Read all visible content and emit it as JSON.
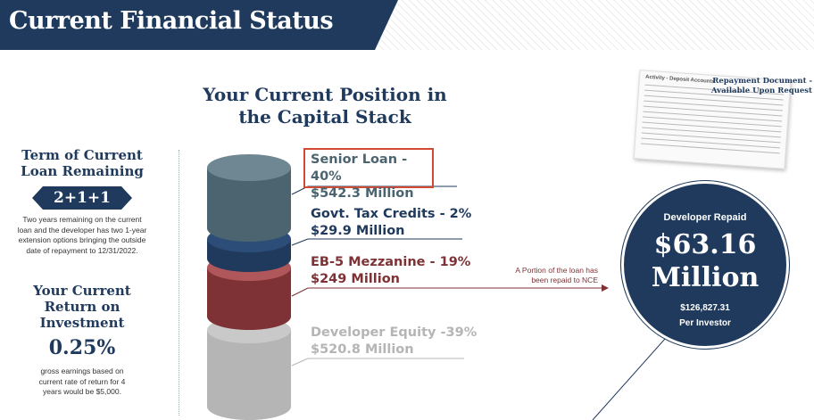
{
  "header": {
    "title": "Current Financial Status"
  },
  "colors": {
    "navy": "#1f3a5c",
    "senior": "#4b6470",
    "govt": "#1f3a5c",
    "mezzanine": "#7e3235",
    "equity": "#b5b5b5",
    "highlight": "#d24a32"
  },
  "left": {
    "term_heading_1": "Term of Current",
    "term_heading_2": "Loan Remaining",
    "term_formula": "2+1+1",
    "term_note_1": "Two years remaining on the current",
    "term_note_2": "loan and the developer has two 1-year",
    "term_note_3": "extension options bringing the outside",
    "term_note_4": "date of repayment to 12/31/2022.",
    "roi_heading_1": "Your Current",
    "roi_heading_2": "Return on",
    "roi_heading_3": "Investment",
    "roi_value": "0.25%",
    "roi_note_1": "gross earnings based on",
    "roi_note_2": "current rate of return for 4",
    "roi_note_3": "years would be $5,000."
  },
  "stack": {
    "title_1": "Your Current Position in",
    "title_2": "the Capital Stack",
    "tiers": [
      {
        "name": "Senior Loan - 40%",
        "amount": "$542.3 Million"
      },
      {
        "name": "Govt. Tax Credits - 2%",
        "amount": "$29.9 Million"
      },
      {
        "name": "EB-5 Mezzanine - 19%",
        "amount": "$249 Million"
      },
      {
        "name": "Developer Equity -39%",
        "amount": "$520.8 Million"
      }
    ],
    "repaid_note_1": "A Portion of the loan has",
    "repaid_note_2": "been  repaid to NCE"
  },
  "document": {
    "caption_1": "Repayment Document -",
    "caption_2": "Available Upon Request",
    "doc_header": "Activity - Deposit Accounts"
  },
  "repaid": {
    "label": "Developer Repaid",
    "amount_1": "$63.16",
    "amount_2": "Million",
    "per_investor_amount": "$126,827.31",
    "per_investor_label": "Per Investor"
  }
}
